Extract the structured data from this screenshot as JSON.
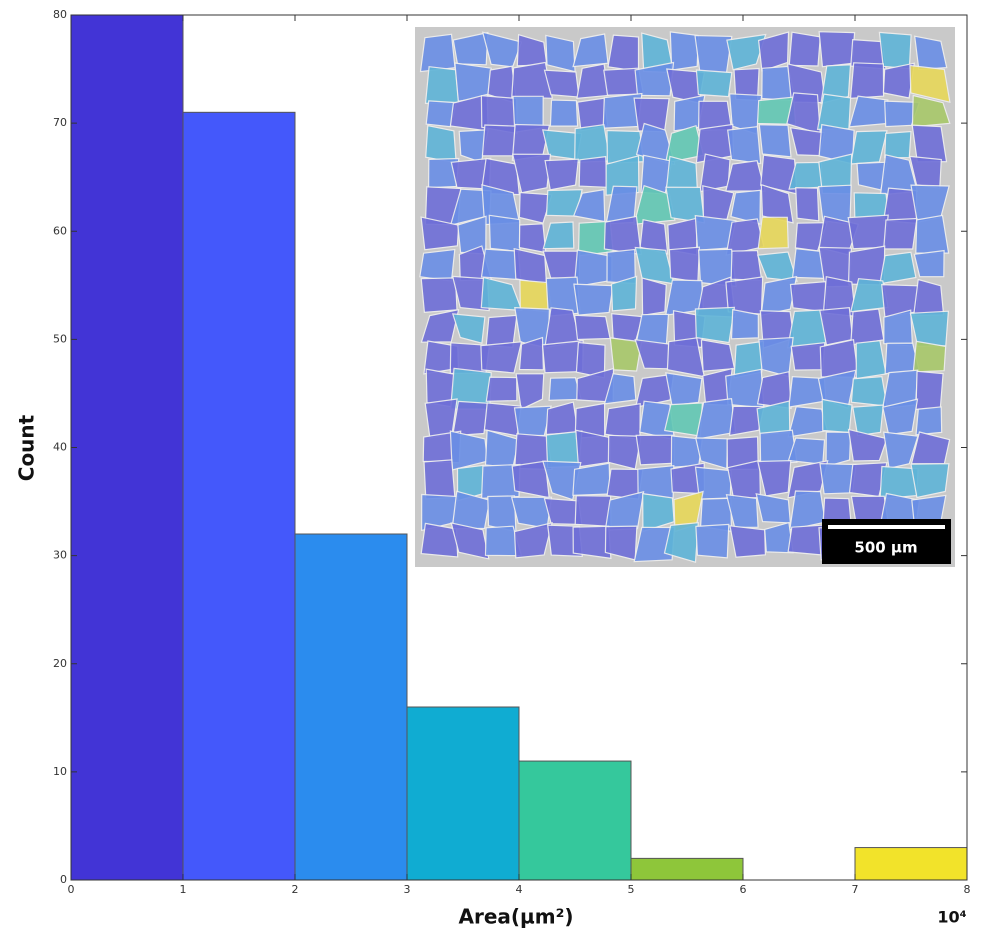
{
  "chart_data": {
    "type": "histogram",
    "x_label": "Area(µm²)",
    "y_label": "Count",
    "x_multiplier_label": "10⁴",
    "bins": [
      0,
      1,
      2,
      3,
      4,
      5,
      6,
      7,
      8
    ],
    "counts": [
      80,
      71,
      32,
      16,
      11,
      2,
      0,
      3
    ],
    "colors": [
      "#4234d6",
      "#4458fb",
      "#2b8cee",
      "#10acd2",
      "#35c89c",
      "#8ec63a",
      "#c8c83a",
      "#f2e32a"
    ],
    "xlim": [
      0,
      8
    ],
    "xticks": [
      0,
      1,
      2,
      3,
      4,
      5,
      6,
      7,
      8
    ],
    "ylim": [
      0,
      80
    ],
    "yticks": [
      0,
      10,
      20,
      30,
      40,
      50,
      60,
      70,
      80
    ]
  },
  "inset": {
    "scale_bar": "500 µm"
  }
}
